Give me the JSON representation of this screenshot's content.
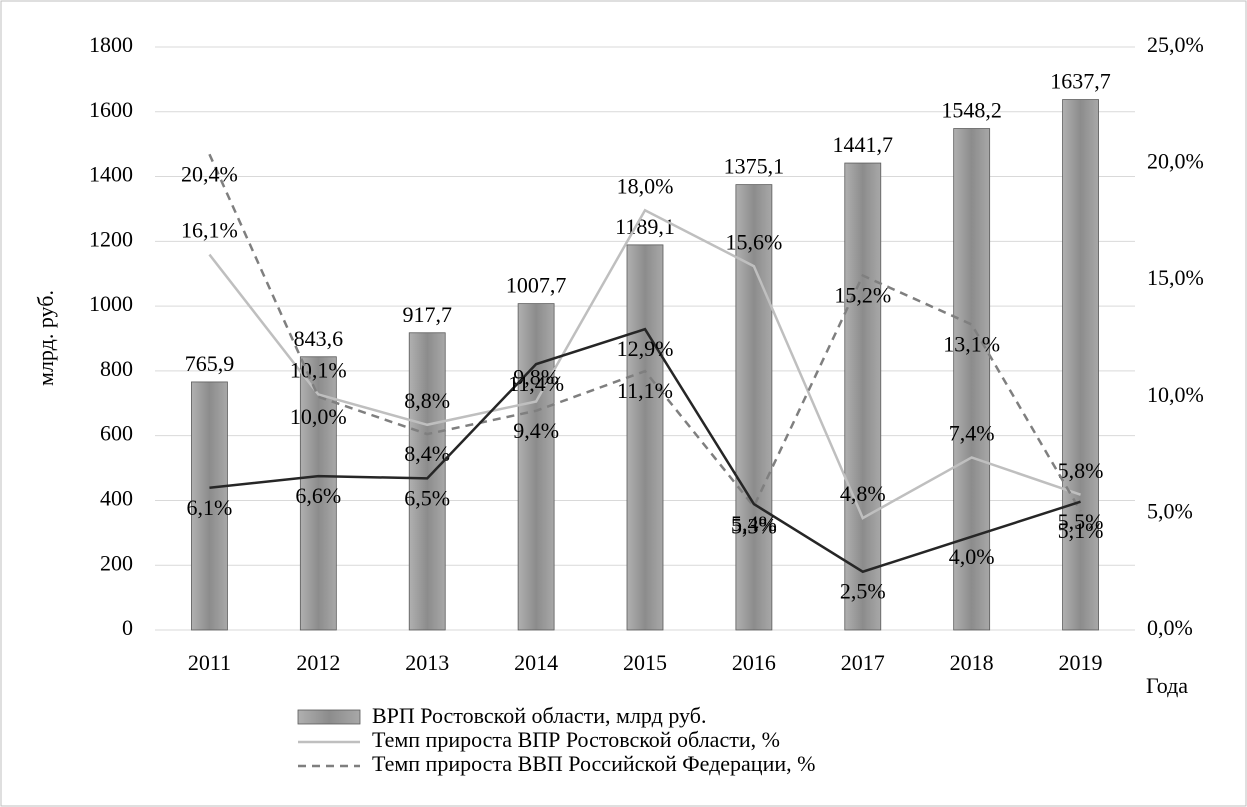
{
  "chart_data": {
    "type": "bar",
    "y_label": "млрд. руб.",
    "x_label": "Года",
    "categories": [
      "2011",
      "2012",
      "2013",
      "2014",
      "2015",
      "2016",
      "2017",
      "2018",
      "2019"
    ],
    "ylim": [
      0,
      1800
    ],
    "yticks": [
      0,
      200,
      400,
      600,
      800,
      1000,
      1200,
      1400,
      1600,
      1800
    ],
    "y2lim": [
      0,
      25
    ],
    "y2ticks": [
      {
        "value": 0,
        "label": "0,0%"
      },
      {
        "value": 5,
        "label": "5,0%"
      },
      {
        "value": 10,
        "label": "10,0%"
      },
      {
        "value": 15,
        "label": "15,0%"
      },
      {
        "value": 20,
        "label": "20,0%"
      },
      {
        "value": 25,
        "label": "25,0%"
      }
    ],
    "grid": true,
    "series": [
      {
        "name": "ВРП Ростовской области, млрд руб.",
        "type": "bar",
        "color": "#9a9a9a",
        "values": [
          765.9,
          843.6,
          917.7,
          1007.7,
          1189.1,
          1375.1,
          1441.7,
          1548.2,
          1637.7
        ],
        "value_labels": [
          "765,9",
          "843,6",
          "917,7",
          "1007,7",
          "1189,1",
          "1375,1",
          "1441,7",
          "1548,2",
          "1637,7"
        ]
      },
      {
        "name": "Темп прироста ВПР Ростовской области, %",
        "type": "line",
        "axis": "y2",
        "color": "#bfbfbf",
        "dash": false,
        "values": [
          16.1,
          10.1,
          8.8,
          9.8,
          18.0,
          15.6,
          4.8,
          7.4,
          5.8
        ],
        "value_labels": [
          "16,1%",
          "10,1%",
          "8,8%",
          "9,8%",
          "18,0%",
          "15,6%",
          "4,8%",
          "7,4%",
          "5,8%"
        ]
      },
      {
        "name": "Темп прироста ВВП Российской Федерации, %",
        "type": "line",
        "axis": "y2",
        "color": "#7f7f7f",
        "dash": true,
        "values": [
          20.4,
          10.0,
          8.4,
          9.4,
          11.1,
          5.3,
          15.2,
          13.1,
          5.1
        ],
        "value_labels": [
          "20,4%",
          "10,0%",
          "8,4%",
          "9,4%",
          "11,1%",
          "5,3%",
          "15,2%",
          "13,1%",
          "5,1%"
        ]
      },
      {
        "type": "line",
        "axis": "y2",
        "color": "#262626",
        "dash": false,
        "values": [
          6.1,
          6.6,
          6.5,
          11.4,
          12.9,
          5.4,
          2.5,
          4.0,
          5.5
        ],
        "value_labels": [
          "6,1%",
          "6,6%",
          "6,5%",
          "11,4%",
          "12,9%",
          "5,4%",
          "2,5%",
          "4,0%",
          "5,5%"
        ]
      }
    ]
  }
}
